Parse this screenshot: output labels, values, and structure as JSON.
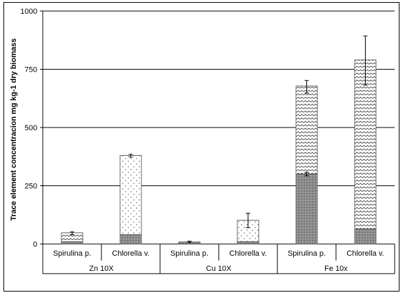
{
  "chart_data": {
    "type": "bar",
    "stacked": true,
    "title": "",
    "ylabel": "Trace element concentracion mg kg-1 dry biomass",
    "xlabel": "",
    "ylim": [
      0,
      1000
    ],
    "yticks": [
      0,
      250,
      500,
      750,
      1000
    ],
    "grid": true,
    "categories": [
      "Spirulina p.",
      "Chlorella v.",
      "Spirulina p.",
      "Chlorella v.",
      "Spirulina p.",
      "Chlorella v."
    ],
    "groups": [
      {
        "label": "Zn 10X",
        "span": 2
      },
      {
        "label": "Cu 10X",
        "span": 2
      },
      {
        "label": "Fe 10x",
        "span": 2
      }
    ],
    "series": [
      {
        "pattern": "dense-dots",
        "color": "#8a8a8a",
        "values": [
          10,
          40,
          2,
          10,
          300,
          65
        ]
      },
      {
        "pattern": "mixed",
        "color": "#ffffff",
        "values": [
          38,
          340,
          7,
          92,
          378,
          725
        ]
      }
    ],
    "segment_patterns": [
      [
        "wave",
        "dots"
      ],
      [
        "wave",
        "dots"
      ],
      [
        "wave",
        "wave"
      ]
    ],
    "errors": [
      {
        "low": 40,
        "high": 52
      },
      {
        "low": 373,
        "high": 385
      },
      {
        "low": 7,
        "high": 12
      },
      {
        "low": 70,
        "high": 132
      },
      {
        "low": 648,
        "high": 702
      },
      {
        "low": 682,
        "high": 893
      }
    ],
    "inner_error": [
      null,
      null,
      null,
      null,
      {
        "low": 293,
        "high": 308
      },
      null
    ]
  }
}
